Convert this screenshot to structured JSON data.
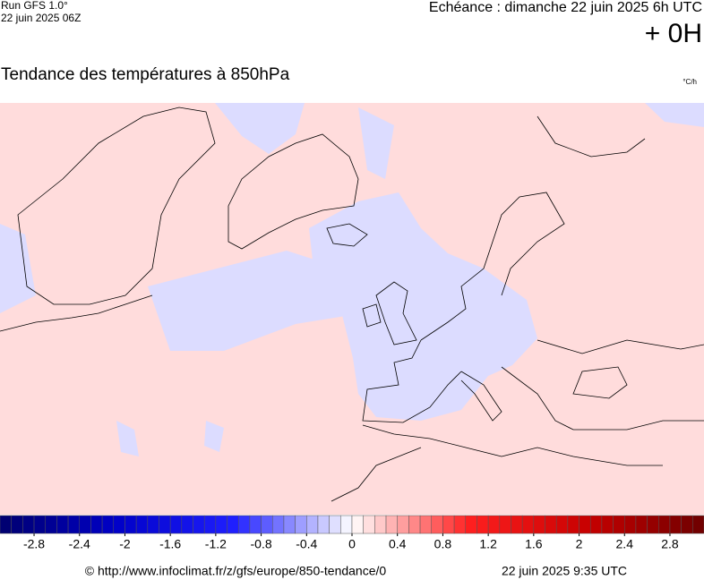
{
  "header": {
    "run": "Run GFS 1.0°",
    "run_date": "22 juin 2025 06Z",
    "valid": "Echéance : dimanche 22 juin 2025 6h UTC",
    "lead": "+ 0H"
  },
  "title": "Tendance des températures à 850hPa",
  "unit": "°C/h",
  "colorbar": {
    "lim": [
      -3.1,
      3.1
    ],
    "bin_width": 0.1,
    "colormap": [
      "#00006e",
      "#0000c8",
      "#2020ff",
      "#ffffff",
      "#ff2020",
      "#c80000",
      "#6e0000"
    ],
    "ticks": [
      -2.8,
      -2.4,
      -2,
      -1.6,
      -1.2,
      -0.8,
      -0.4,
      0,
      0.4,
      0.8,
      1.2,
      1.6,
      2,
      2.4,
      2.8
    ]
  },
  "footer": {
    "url": "© http://www.infoclimat.fr/z/gfs/europe/850-tendance/0",
    "time": "22 juin 2025  9:35 UTC"
  }
}
